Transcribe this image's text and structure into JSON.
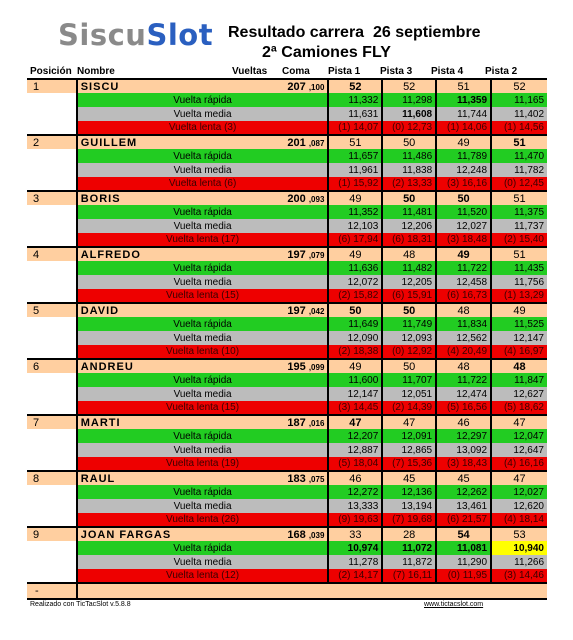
{
  "header": {
    "logo_part1": "Siscu",
    "logo_part2": "Slot",
    "title_line1": "Resultado carrera  26 septiembre",
    "title_line2": "2ª Camiones FLY"
  },
  "columns": {
    "position": "Posición",
    "name": "Nombre",
    "laps": "Vueltas",
    "coma": "Coma",
    "tracks": [
      "Pista 1",
      "Pista 3",
      "Pista 4",
      "Pista 2"
    ]
  },
  "row_labels": {
    "fast": "Vuelta rápida",
    "avg": "Vuelta media",
    "slow": "Vuelta  lenta"
  },
  "drivers": [
    {
      "pos": "1",
      "name": "SISCU",
      "laps": "207",
      "dec": ",100",
      "tracks": [
        "52",
        "52",
        "51",
        "52"
      ],
      "fast": [
        "11,332",
        "11,298",
        "11,359",
        "11,165"
      ],
      "avg": [
        "11,631",
        "11,608",
        "11,744",
        "11,402"
      ],
      "slow_count": "(3)",
      "slow": [
        "(1) 14,07",
        "(0) 12,73",
        "(1) 14,06",
        "(1) 14,56"
      ]
    },
    {
      "pos": "2",
      "name": "GUILLEM",
      "laps": "201",
      "dec": ",087",
      "tracks": [
        "51",
        "50",
        "49",
        "51"
      ],
      "fast": [
        "11,657",
        "11,486",
        "11,789",
        "11,470"
      ],
      "avg": [
        "11,961",
        "11,838",
        "12,248",
        "11,782"
      ],
      "slow_count": "(6)",
      "slow": [
        "(1) 15,92",
        "(2) 13,33",
        "(3) 16,16",
        "(0) 12,45"
      ]
    },
    {
      "pos": "3",
      "name": "BORIS",
      "laps": "200",
      "dec": ",093",
      "tracks": [
        "49",
        "50",
        "50",
        "51"
      ],
      "fast": [
        "11,352",
        "11,481",
        "11,520",
        "11,375"
      ],
      "avg": [
        "12,103",
        "12,206",
        "12,027",
        "11,737"
      ],
      "slow_count": "(17)",
      "slow": [
        "(6) 17,94",
        "(6) 18,31",
        "(3) 18,48",
        "(2) 15,40"
      ]
    },
    {
      "pos": "4",
      "name": "ALFREDO",
      "laps": "197",
      "dec": ",079",
      "tracks": [
        "49",
        "48",
        "49",
        "51"
      ],
      "fast": [
        "11,636",
        "11,482",
        "11,722",
        "11,435"
      ],
      "avg": [
        "12,072",
        "12,205",
        "12,458",
        "11,756"
      ],
      "slow_count": "(15)",
      "slow": [
        "(2) 15,82",
        "(6) 15,91",
        "(6) 16,73",
        "(1) 13,29"
      ]
    },
    {
      "pos": "5",
      "name": "DAVID",
      "laps": "197",
      "dec": ",042",
      "tracks": [
        "50",
        "50",
        "48",
        "49"
      ],
      "fast": [
        "11,649",
        "11,749",
        "11,834",
        "11,525"
      ],
      "avg": [
        "12,090",
        "12,093",
        "12,562",
        "12,147"
      ],
      "slow_count": "(10)",
      "slow": [
        "(2) 18,38",
        "(0) 12,92",
        "(4) 20,49",
        "(4) 16,97"
      ]
    },
    {
      "pos": "6",
      "name": "ANDREU",
      "laps": "195",
      "dec": ",099",
      "tracks": [
        "49",
        "50",
        "48",
        "48"
      ],
      "fast": [
        "11,600",
        "11,707",
        "11,722",
        "11,847"
      ],
      "avg": [
        "12,147",
        "12,051",
        "12,474",
        "12,627"
      ],
      "slow_count": "(15)",
      "slow": [
        "(3) 14,45",
        "(2) 14,39",
        "(5) 16,56",
        "(5) 18,62"
      ]
    },
    {
      "pos": "7",
      "name": "MARTI",
      "laps": "187",
      "dec": ",016",
      "tracks": [
        "47",
        "47",
        "46",
        "47"
      ],
      "fast": [
        "12,207",
        "12,091",
        "12,297",
        "12,047"
      ],
      "avg": [
        "12,887",
        "12,865",
        "13,092",
        "12,647"
      ],
      "slow_count": "(19)",
      "slow": [
        "(5) 18,04",
        "(7) 15,36",
        "(3) 18,43",
        "(4) 16,16"
      ]
    },
    {
      "pos": "8",
      "name": "RAUL",
      "laps": "183",
      "dec": ",075",
      "tracks": [
        "46",
        "45",
        "45",
        "47"
      ],
      "fast": [
        "12,272",
        "12,136",
        "12,262",
        "12,027"
      ],
      "avg": [
        "13,333",
        "13,194",
        "13,461",
        "12,620"
      ],
      "slow_count": "(26)",
      "slow": [
        "(9) 19,63",
        "(7) 19,68",
        "(6) 21,57",
        "(4) 18,14"
      ]
    },
    {
      "pos": "9",
      "name": "JOAN FARGAS",
      "laps": "168",
      "dec": ",039",
      "tracks": [
        "33",
        "28",
        "54",
        "53"
      ],
      "fast": [
        "10,974",
        "11,072",
        "11,081",
        "10,940"
      ],
      "avg": [
        "11,278",
        "11,872",
        "11,290",
        "11,266"
      ],
      "slow_count": "(12)",
      "slow": [
        "(2) 14,17",
        "(7) 16,11",
        "(0) 11,95",
        "(3) 14,46"
      ]
    }
  ],
  "last_row": {
    "pos": "-"
  },
  "colors": {
    "main_row": "#ffcfa0",
    "fast": "#22cc22",
    "avg": "#bcbcbc",
    "slow": "#ee0000",
    "highlight": "#ffff00",
    "logo_blue": "#2a5fc0"
  },
  "footer": {
    "left": "Realizado con TicTacSlot v.5.8.8",
    "right": "www.tictacslot.com"
  }
}
